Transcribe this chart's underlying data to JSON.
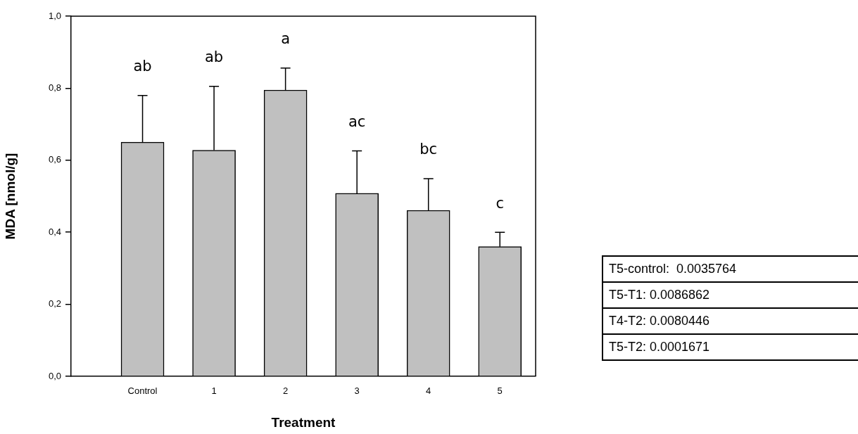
{
  "chart_data": {
    "type": "bar",
    "xlabel": "Treatment",
    "ylabel": "MDA [nmol/g]",
    "categories": [
      "Control",
      "1",
      "2",
      "3",
      "4",
      "5"
    ],
    "values": [
      0.65,
      0.628,
      0.795,
      0.508,
      0.461,
      0.36
    ],
    "errors": [
      [
        0.65,
        0.78
      ],
      [
        0.628,
        0.805
      ],
      [
        0.795,
        0.856
      ],
      [
        0.508,
        0.626
      ],
      [
        0.461,
        0.549
      ],
      [
        0.36,
        0.4
      ]
    ],
    "color": "#c0c0c0",
    "ylim": [
      0,
      1
    ],
    "yticks": [
      {
        "value": 0,
        "label": "0,0"
      },
      {
        "value": 0.2,
        "label": "0,2"
      },
      {
        "value": 0.4,
        "label": "0,4"
      },
      {
        "value": 0.6,
        "label": "0,6"
      },
      {
        "value": 0.8,
        "label": "0,8"
      },
      {
        "value": 1,
        "label": "1,0"
      }
    ],
    "grid": false,
    "legend": false,
    "annotations": [
      "ab",
      "ab",
      "a",
      "ac",
      "bc",
      "c",
      "T5-control:  0.0035764",
      "T5-T1: 0.0086862",
      "T4-T2: 0.0080446",
      "T5-T2: 0.0001671"
    ]
  }
}
